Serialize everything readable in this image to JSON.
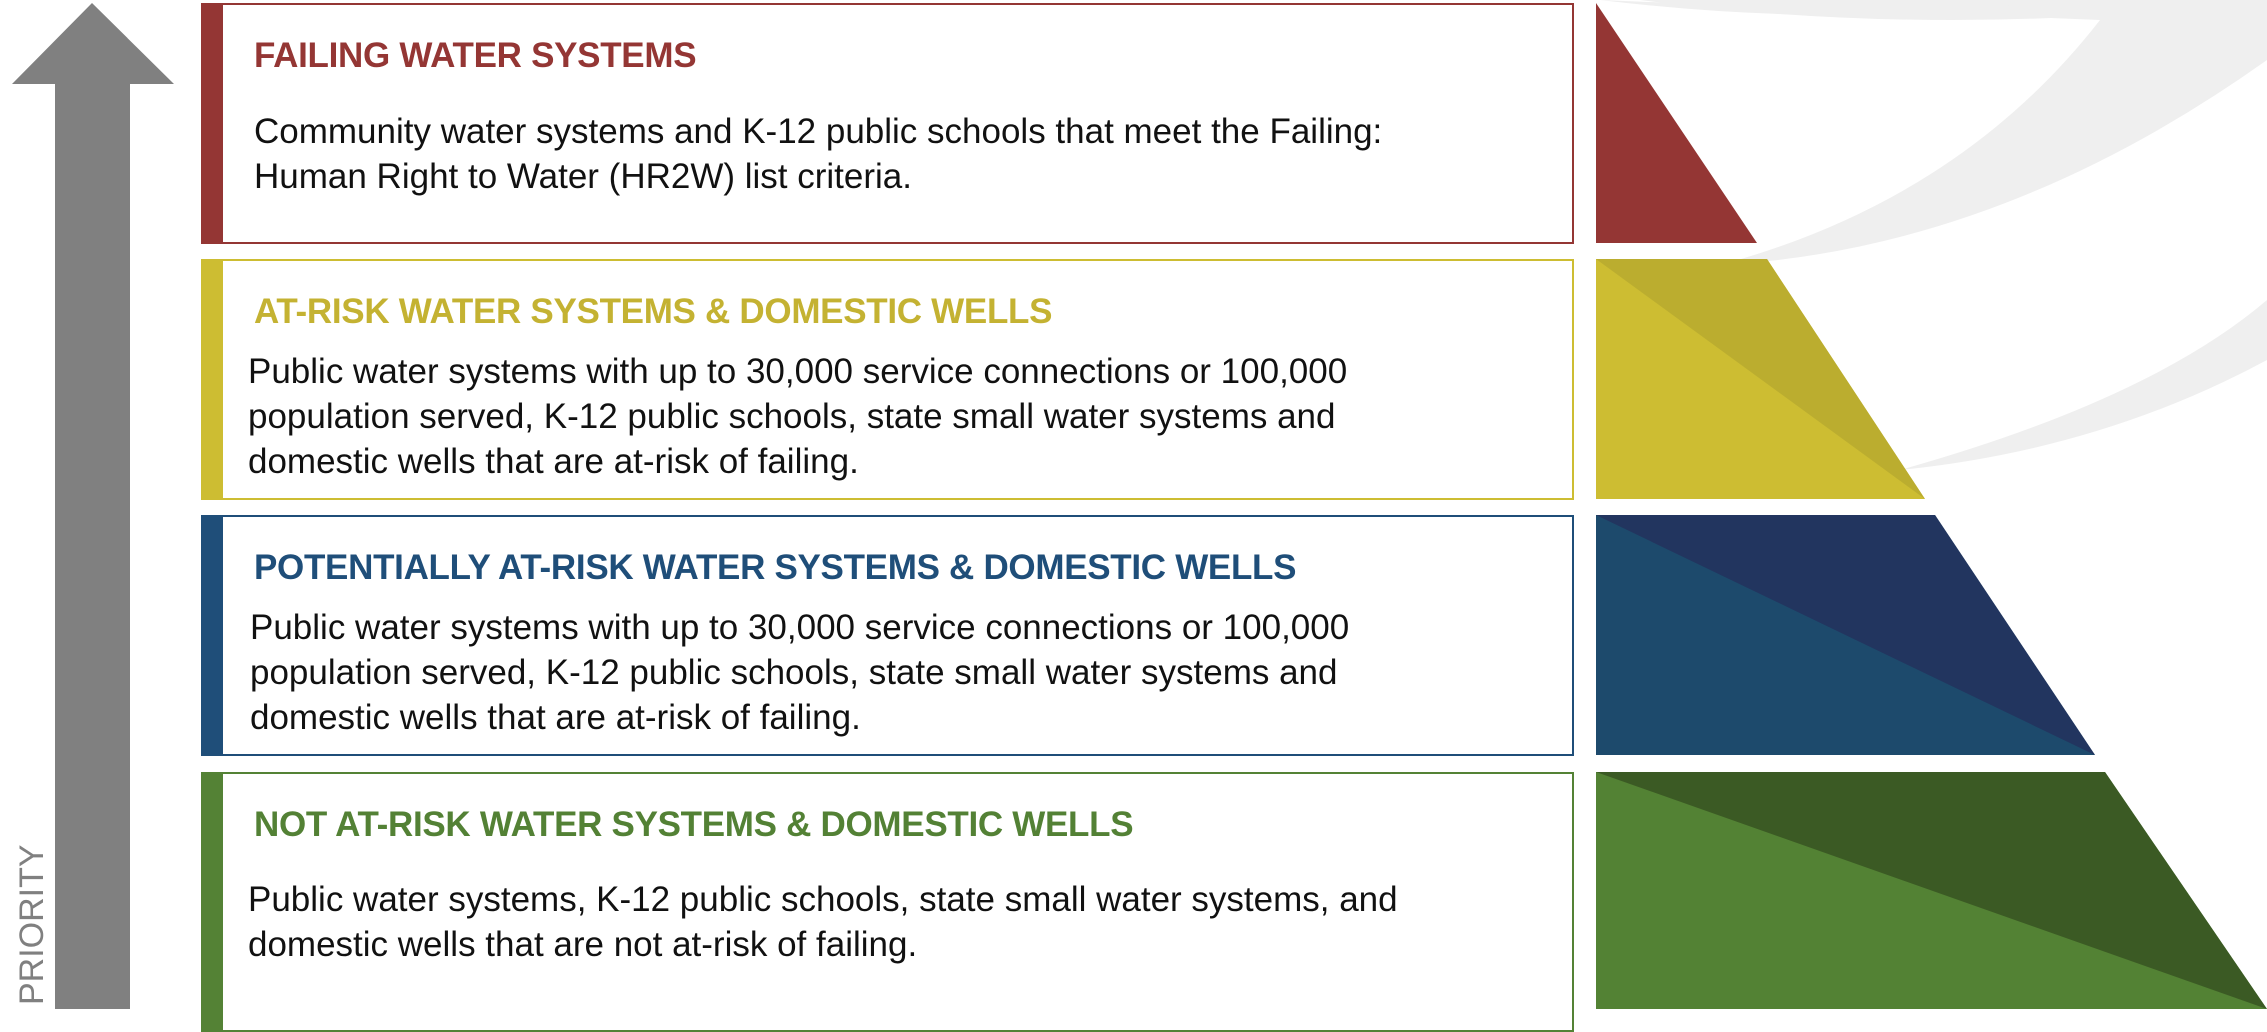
{
  "axis_label": "PRIORITY",
  "tiers": [
    {
      "title": "FAILING WATER SYSTEMS",
      "lines": [
        "Community water systems and K-12 public schools that meet the Failing:",
        "Human Right to Water (HR2W) list criteria."
      ]
    },
    {
      "title": "AT-RISK WATER SYSTEMS & DOMESTIC WELLS",
      "lines": [
        "Public water systems with up to 30,000 service connections or 100,000",
        "population served,  K-12 public schools, state small water systems and",
        "domestic wells that are at-risk of failing."
      ]
    },
    {
      "title": "POTENTIALLY AT-RISK WATER SYSTEMS & DOMESTIC WELLS",
      "lines": [
        "Public water systems with up to 30,000 service connections or 100,000",
        "population served,  K-12 public schools, state small water systems and",
        "domestic wells that are at-risk of failing."
      ]
    },
    {
      "title": "NOT AT-RISK WATER SYSTEMS & DOMESTIC WELLS",
      "lines": [
        "Public water systems, K-12 public schools, state small water systems, and",
        "domestic wells that are not at-risk of failing."
      ]
    }
  ]
}
